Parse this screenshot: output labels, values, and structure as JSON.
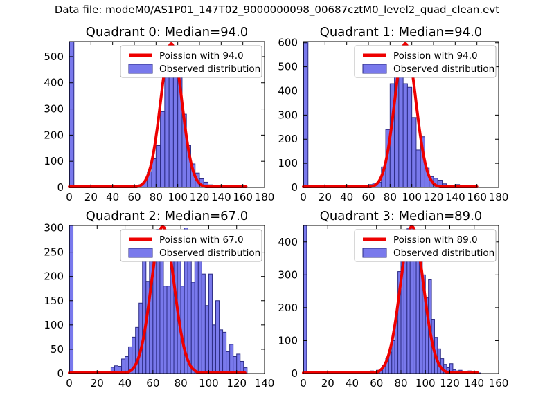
{
  "figure_title": "Data file: modeM0/AS1P01_147T02_9000000098_00687cztM0_level2_quad_clean.evt",
  "colors": {
    "background": "#ffffff",
    "hist_fill": "#7979ec",
    "hist_edge": "#2c2c85",
    "curve": "#ee0000",
    "axis": "#000000",
    "legend_border": "#b0b0b0",
    "legend_bg": "#ffffff",
    "text": "#000000"
  },
  "chart_data": [
    {
      "type": "histogram+line",
      "title": "Quadrant 0: Median=94.0",
      "median": 94.0,
      "legend": [
        "Poission with 94.0",
        "Observed distribution"
      ],
      "legend_position": "upper right",
      "xlim": [
        0,
        180
      ],
      "ylim": [
        0,
        558
      ],
      "xticks": [
        0,
        20,
        40,
        60,
        80,
        100,
        120,
        140,
        160,
        180
      ],
      "yticks": [
        0,
        100,
        200,
        300,
        400,
        500
      ],
      "zero_bin_clipped_at_top": true,
      "bin_width": 4,
      "bins_start": 56,
      "counts": [
        3,
        8,
        10,
        25,
        60,
        110,
        160,
        290,
        430,
        545,
        530,
        430,
        280,
        160,
        90,
        55,
        33,
        20,
        10,
        6,
        4,
        3,
        2,
        2,
        1,
        1,
        2
      ],
      "poisson": {
        "mean": 94.0,
        "sigma": 9.7,
        "peak": 550,
        "x_end": 163
      }
    },
    {
      "type": "histogram+line",
      "title": "Quadrant 1: Median=94.0",
      "median": 94.0,
      "legend": [
        "Poission with 94.0",
        "Observed distribution"
      ],
      "legend_position": "upper right",
      "xlim": [
        0,
        180
      ],
      "ylim": [
        0,
        605
      ],
      "xticks": [
        0,
        20,
        40,
        60,
        80,
        100,
        120,
        140,
        160,
        180
      ],
      "yticks": [
        0,
        100,
        200,
        300,
        400,
        500,
        600
      ],
      "zero_bin_clipped_at_top": true,
      "bin_width": 4,
      "bins_start": 56,
      "counts": [
        4,
        12,
        18,
        22,
        85,
        240,
        430,
        480,
        560,
        430,
        415,
        290,
        155,
        210,
        80,
        45,
        38,
        30,
        15,
        8,
        5,
        12,
        3,
        8,
        2
      ],
      "poisson": {
        "mean": 94.0,
        "sigma": 9.7,
        "peak": 597,
        "x_end": 160
      }
    },
    {
      "type": "histogram+line",
      "title": "Quadrant 2: Median=67.0",
      "median": 67.0,
      "legend": [
        "Poission with 67.0",
        "Observed distribution"
      ],
      "legend_position": "upper right",
      "xlim": [
        0,
        140
      ],
      "ylim": [
        0,
        305
      ],
      "xticks": [
        0,
        20,
        40,
        60,
        80,
        100,
        120,
        140
      ],
      "yticks": [
        0,
        50,
        100,
        150,
        200,
        250,
        300
      ],
      "zero_bin_clipped_at_top": true,
      "bin_width": 2.5,
      "bins_start": 27.5,
      "counts": [
        5,
        13,
        16,
        15,
        30,
        35,
        55,
        75,
        95,
        145,
        245,
        190,
        285,
        245,
        297,
        265,
        180,
        180,
        265,
        270,
        245,
        180,
        300,
        265,
        188,
        232,
        240,
        205,
        140,
        205,
        100,
        150,
        90,
        85,
        45,
        60,
        35,
        40,
        25,
        12
      ],
      "poisson": {
        "mean": 67.0,
        "sigma": 8.2,
        "peak": 303,
        "x_end": 126
      }
    },
    {
      "type": "histogram+line",
      "title": "Quadrant 3: Median=89.0",
      "median": 89.0,
      "legend": [
        "Poission with 89.0",
        "Observed distribution"
      ],
      "legend_position": "upper right",
      "xlim": [
        0,
        160
      ],
      "ylim": [
        0,
        450
      ],
      "xticks": [
        0,
        20,
        40,
        60,
        80,
        100,
        120,
        140,
        160
      ],
      "yticks": [
        0,
        100,
        200,
        300,
        400
      ],
      "zero_bin_clipped_at_top": true,
      "bin_width": 2.5,
      "bins_start": 50,
      "counts": [
        6,
        4,
        8,
        6,
        10,
        12,
        25,
        45,
        65,
        100,
        160,
        310,
        345,
        400,
        440,
        448,
        430,
        400,
        340,
        300,
        230,
        285,
        165,
        110,
        75,
        45,
        28,
        18,
        30,
        12,
        8,
        10,
        5,
        4,
        8,
        3,
        2,
        2
      ],
      "poisson": {
        "mean": 89.0,
        "sigma": 9.4,
        "peak": 447,
        "x_end": 143
      }
    }
  ]
}
